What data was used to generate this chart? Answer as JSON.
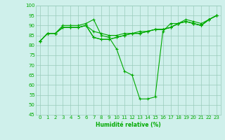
{
  "xlabel": "Humidité relative (%)",
  "xlim": [
    -0.5,
    23.5
  ],
  "ylim": [
    45,
    100
  ],
  "yticks": [
    45,
    50,
    55,
    60,
    65,
    70,
    75,
    80,
    85,
    90,
    95,
    100
  ],
  "xticks": [
    0,
    1,
    2,
    3,
    4,
    5,
    6,
    7,
    8,
    9,
    10,
    11,
    12,
    13,
    14,
    15,
    16,
    17,
    18,
    19,
    20,
    21,
    22,
    23
  ],
  "background_color": "#cff0eb",
  "grid_color": "#99ccbb",
  "line_color": "#00aa00",
  "curves": [
    [
      82,
      86,
      86,
      90,
      90,
      90,
      91,
      93,
      85,
      84,
      78,
      67,
      65,
      53,
      53,
      54,
      87,
      91,
      91,
      93,
      92,
      91,
      93,
      95
    ],
    [
      82,
      86,
      86,
      89,
      89,
      89,
      90,
      87,
      86,
      85,
      85,
      86,
      86,
      87,
      87,
      88,
      88,
      89,
      91,
      92,
      91,
      90,
      93,
      95
    ],
    [
      82,
      86,
      86,
      89,
      89,
      89,
      90,
      84,
      83,
      83,
      84,
      85,
      86,
      86,
      87,
      88,
      88,
      89,
      91,
      92,
      91,
      90,
      93,
      95
    ],
    [
      82,
      86,
      86,
      89,
      89,
      89,
      90,
      84,
      83,
      83,
      84,
      85,
      86,
      86,
      87,
      88,
      88,
      89,
      91,
      92,
      91,
      90,
      93,
      95
    ]
  ]
}
